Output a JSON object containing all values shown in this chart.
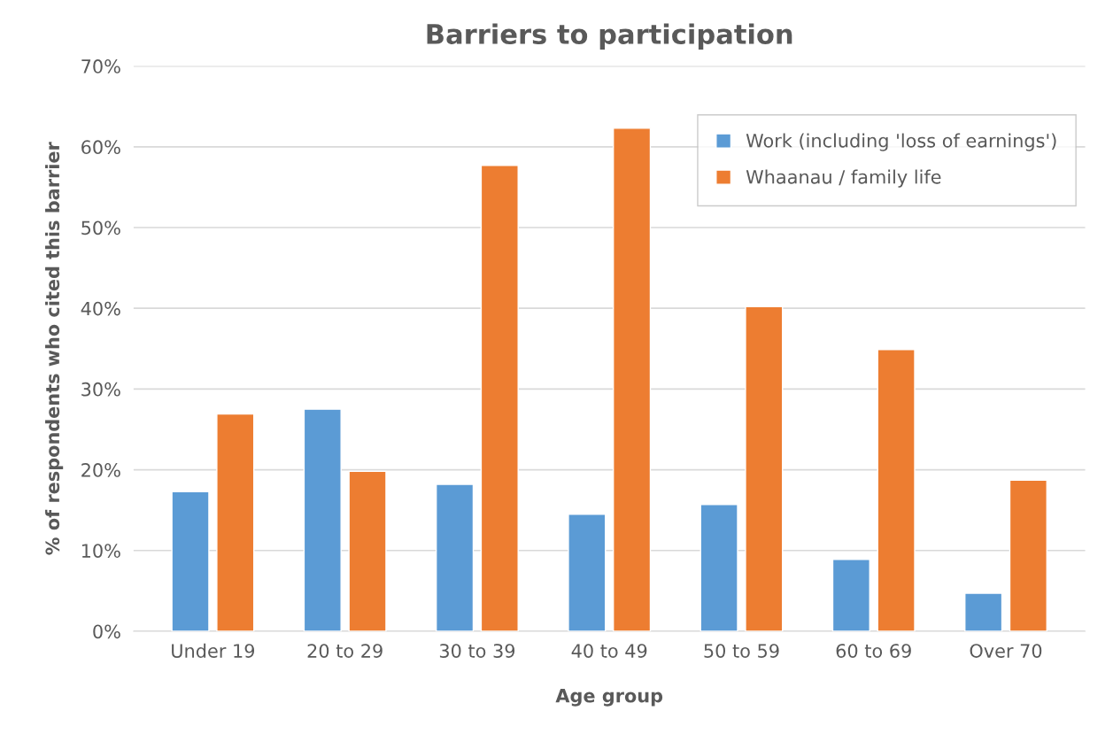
{
  "chart_data": {
    "type": "bar",
    "title": "Barriers to participation",
    "xlabel": "Age group",
    "ylabel": "% of respondents who cited this barrier",
    "categories": [
      "Under 19",
      "20 to 29",
      "30 to 39",
      "40 to 49",
      "50 to 59",
      "60 to 69",
      "Over 70"
    ],
    "series": [
      {
        "name": "Work (including 'loss of earnings')",
        "color": "#5b9bd5",
        "values": [
          17.3,
          27.5,
          18.2,
          14.5,
          15.7,
          8.9,
          4.7
        ]
      },
      {
        "name": "Whaanau / family life",
        "color": "#ed7d31",
        "values": [
          26.9,
          19.8,
          57.7,
          62.3,
          40.2,
          34.9,
          18.7
        ]
      }
    ],
    "ylim": [
      0,
      70
    ],
    "yticks": [
      {
        "value": 0,
        "label": "0%"
      },
      {
        "value": 10,
        "label": "10%"
      },
      {
        "value": 20,
        "label": "20%"
      },
      {
        "value": 30,
        "label": "30%"
      },
      {
        "value": 40,
        "label": "40%"
      },
      {
        "value": 50,
        "label": "50%"
      },
      {
        "value": 60,
        "label": "60%"
      },
      {
        "value": 70,
        "label": "70%"
      }
    ],
    "grid": "y",
    "legend": "top right"
  }
}
